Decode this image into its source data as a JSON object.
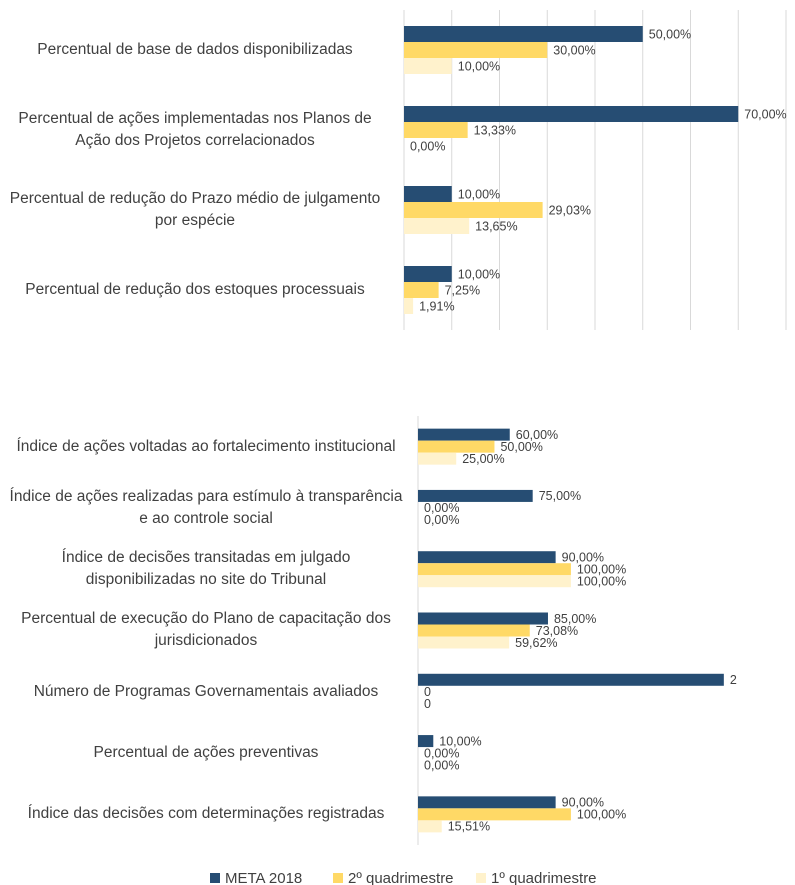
{
  "chart_data": [
    {
      "type": "barh",
      "categories": [
        "Percentual de base de dados disponibilizadas",
        "Percentual de ações implementadas nos Planos de Ação dos Projetos correlacionados",
        "Percentual de redução do Prazo médio de julgamento por espécie",
        "Percentual de redução dos estoques processuais"
      ],
      "series": [
        {
          "name": "META 2018",
          "color": "#264d73",
          "values": [
            50,
            70,
            10,
            10
          ],
          "value_labels": [
            "50,00%",
            "70,00%",
            "10,00%",
            "10,00%"
          ]
        },
        {
          "name": "2º quadrimestre",
          "color": "#ffd966",
          "values": [
            30,
            13.33,
            29.03,
            7.25
          ],
          "value_labels": [
            "30,00%",
            "13,33%",
            "29,03%",
            "7,25%"
          ]
        },
        {
          "name": "1º quadrimestre",
          "color": "#fff2cc",
          "values": [
            10,
            0,
            13.65,
            1.91
          ],
          "value_labels": [
            "10,00%",
            "0,00%",
            "13,65%",
            "1,91%"
          ]
        }
      ],
      "xlim": [
        0,
        80
      ],
      "xticks": [
        0,
        10,
        20,
        30,
        40,
        50,
        60,
        70,
        80
      ],
      "grid": true
    },
    {
      "type": "barh",
      "categories": [
        "Índice de ações voltadas ao fortalecimento institucional",
        "Índice de ações realizadas para estímulo à transparência e ao controle social",
        "Índice de decisões transitadas em julgado disponibilizadas no site do Tribunal",
        "Percentual de execução do Plano de capacitação dos jurisdicionados",
        "Número de Programas Governamentais avaliados",
        "Percentual de ações preventivas",
        "Índice das decisões com determinações registradas"
      ],
      "series": [
        {
          "name": "META 2018",
          "color": "#264d73",
          "values": [
            0.6,
            0.75,
            0.9,
            0.85,
            2,
            0.1,
            0.9
          ],
          "value_labels": [
            "60,00%",
            "75,00%",
            "90,00%",
            "85,00%",
            "2",
            "10,00%",
            "90,00%"
          ]
        },
        {
          "name": "2º quadrimestre",
          "color": "#ffd966",
          "values": [
            0.5,
            0,
            1,
            0.7308,
            0,
            0,
            1
          ],
          "value_labels": [
            "50,00%",
            "0,00%",
            "100,00%",
            "73,08%",
            "0",
            "0,00%",
            "100,00%"
          ]
        },
        {
          "name": "1º quadrimestre",
          "color": "#fff2cc",
          "values": [
            0.25,
            0,
            1,
            0.5962,
            0,
            0,
            0.1551
          ],
          "value_labels": [
            "25,00%",
            "0,00%",
            "100,00%",
            "59,62%",
            "0",
            "0,00%",
            "15,51%"
          ]
        }
      ],
      "xlim": [
        0,
        2.4
      ],
      "grid": false,
      "legend": "bottom"
    }
  ]
}
